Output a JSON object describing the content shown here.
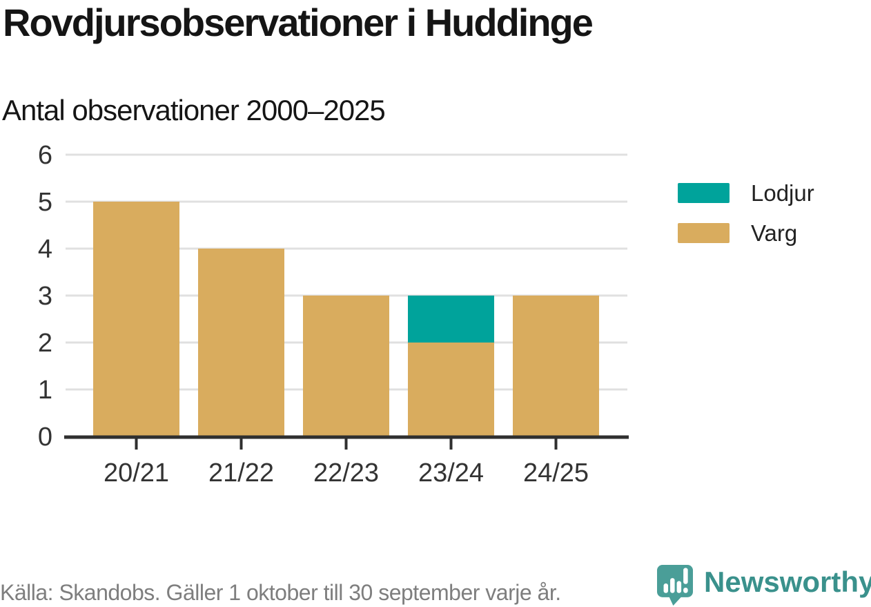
{
  "title": "Rovdjursobservationer i Huddinge",
  "subtitle": "Antal observationer 2000–2025",
  "footer": {
    "source_text": "Källa: Skandobs. Gäller 1 oktober till 30 september varje år.",
    "brand": "Newsworthy"
  },
  "legend_items": [
    {
      "label": "Lodjur",
      "color": "#00A39B"
    },
    {
      "label": "Varg",
      "color": "#D9AC5E"
    }
  ],
  "chart_data": {
    "type": "bar",
    "stacked": true,
    "title": "Rovdjursobservationer i Huddinge",
    "subtitle": "Antal observationer 2000–2025",
    "categories": [
      "20/21",
      "21/22",
      "22/23",
      "23/24",
      "24/25"
    ],
    "series": [
      {
        "name": "Varg",
        "color": "#D9AC5E",
        "values": [
          5,
          4,
          3,
          2,
          3
        ]
      },
      {
        "name": "Lodjur",
        "color": "#00A39B",
        "values": [
          0,
          0,
          0,
          1,
          0
        ]
      }
    ],
    "totals": [
      5,
      4,
      3,
      3,
      3
    ],
    "xlabel": "",
    "ylabel": "",
    "ylim": [
      0,
      6
    ],
    "yticks": [
      0,
      1,
      2,
      3,
      4,
      5,
      6
    ],
    "grid": true,
    "legend_position": "right"
  },
  "colors": {
    "background": "#FFFFFF",
    "title_text": "#151515",
    "axis_line": "#2F2F2F",
    "tick_label": "#333333",
    "gridline": "#E0E0E0",
    "footer_text": "#7E7E7E",
    "brand_teal": "#3A918C",
    "brand_icon_teal": "#4A9E98"
  }
}
